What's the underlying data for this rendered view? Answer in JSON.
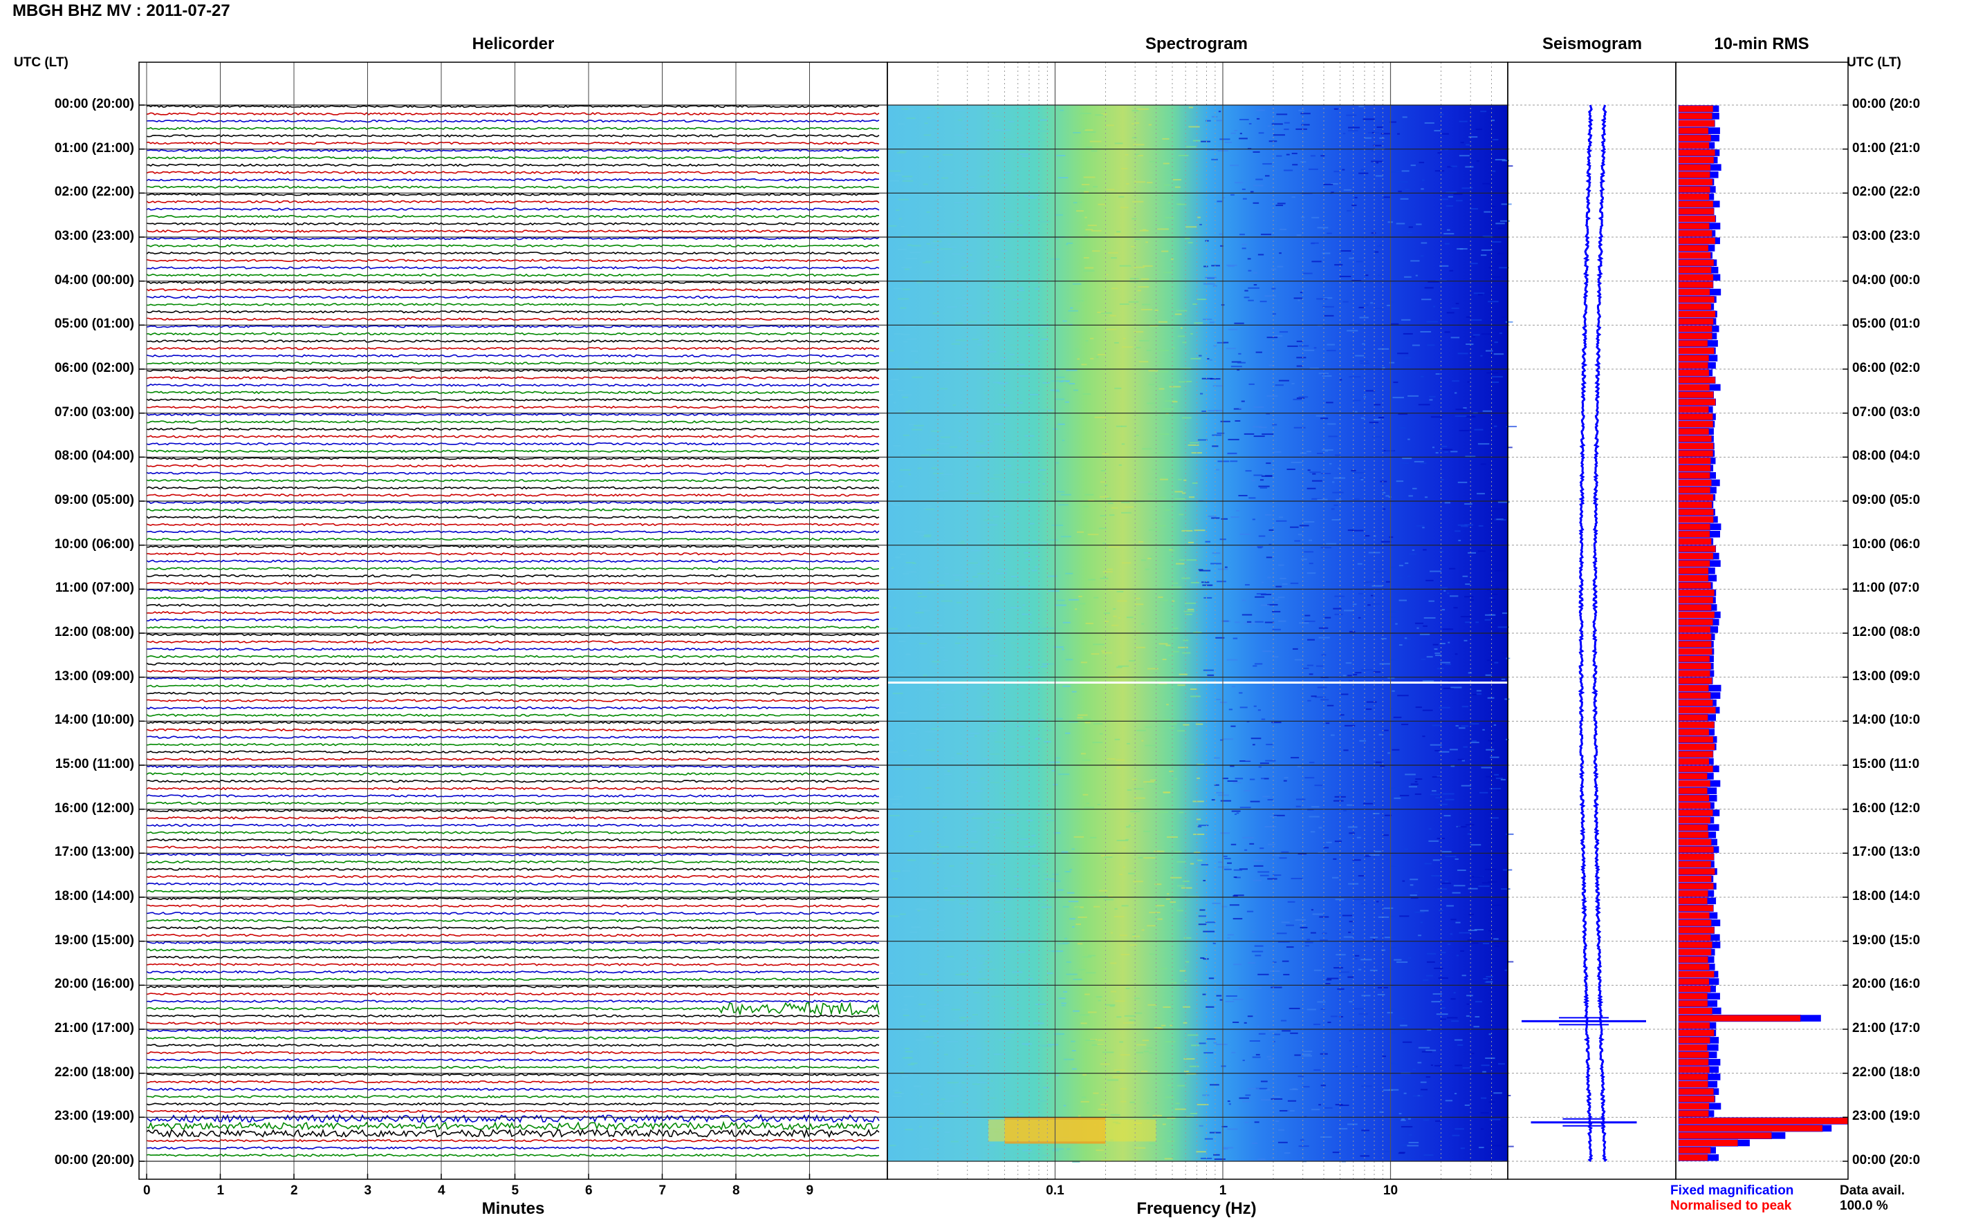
{
  "header": {
    "title": "MBGH BHZ MV : 2011-07-27",
    "tz_label_left": "UTC (LT)",
    "tz_label_right": "UTC (LT)"
  },
  "panels": {
    "helicorder": "Helicorder",
    "spectrogram": "Spectrogram",
    "seismogram": "Seismogram",
    "rms": "10-min RMS"
  },
  "time_labels": [
    "00:00 (20:00)",
    "01:00 (21:00)",
    "02:00 (22:00)",
    "03:00 (23:00)",
    "04:00 (00:00)",
    "05:00 (01:00)",
    "06:00 (02:00)",
    "07:00 (03:00)",
    "08:00 (04:00)",
    "09:00 (05:00)",
    "10:00 (06:00)",
    "11:00 (07:00)",
    "12:00 (08:00)",
    "13:00 (09:00)",
    "14:00 (10:00)",
    "15:00 (11:00)",
    "16:00 (12:00)",
    "17:00 (13:00)",
    "18:00 (14:00)",
    "19:00 (15:00)",
    "20:00 (16:00)",
    "21:00 (17:00)",
    "22:00 (18:00)",
    "23:00 (19:00)",
    "00:00 (20:00)"
  ],
  "time_labels_right": [
    "00:00 (20:0",
    "01:00 (21:0",
    "02:00 (22:0",
    "03:00 (23:0",
    "04:00 (00:0",
    "05:00 (01:0",
    "06:00 (02:0",
    "07:00 (03:0",
    "08:00 (04:0",
    "09:00 (05:0",
    "10:00 (06:0",
    "11:00 (07:0",
    "12:00 (08:0",
    "13:00 (09:0",
    "14:00 (10:0",
    "15:00 (11:0",
    "16:00 (12:0",
    "17:00 (13:0",
    "18:00 (14:0",
    "19:00 (15:0",
    "20:00 (16:0",
    "21:00 (17:0",
    "22:00 (18:0",
    "23:00 (19:0",
    "00:00 (20:0"
  ],
  "legend": {
    "fixed": "Fixed magnification",
    "normalised": "Normalised to peak",
    "fixed_color": "#0000ff",
    "normalised_color": "#ff0000"
  },
  "data_avail": {
    "label": "Data avail.",
    "value": "100.0 %"
  },
  "chart_data": [
    {
      "type": "line",
      "title": "Helicorder",
      "xlabel": "Minutes",
      "x_ticks": [
        0,
        1,
        2,
        3,
        4,
        5,
        6,
        7,
        8,
        9
      ],
      "xlim": [
        0,
        10
      ],
      "rows_per_hour": 6,
      "trace_colors": [
        "#000000",
        "#cc0000",
        "#0000cc",
        "#008800"
      ],
      "events": [
        {
          "hour_row": 123,
          "start_min": 7.8,
          "end_min": 10.0,
          "kind": "sustained large amplitude"
        },
        {
          "hour_row": 138,
          "start_min": 0.0,
          "end_min": 10.0,
          "kind": "large amplitude"
        },
        {
          "hour_row": 139,
          "start_min": 0.0,
          "end_min": 10.0,
          "kind": "large amplitude"
        },
        {
          "hour_row": 140,
          "start_min": 0.0,
          "end_min": 10.0,
          "kind": "large amplitude"
        }
      ]
    },
    {
      "type": "heatmap",
      "title": "Spectrogram",
      "xlabel": "Frequency (Hz)",
      "x_ticks": [
        "0.1",
        "1",
        "10"
      ],
      "x_scale": "log",
      "xlim": [
        0.01,
        50
      ],
      "colors": [
        "#60c8e8",
        "#5fd2c8",
        "#7fe08a",
        "#c8e060",
        "#3a80f0",
        "#1040e0",
        "#0010c0"
      ]
    },
    {
      "type": "line",
      "title": "Seismogram",
      "spikes": [
        {
          "time": "20:49",
          "relative": 1.0
        },
        {
          "time": "23:07",
          "relative": 0.85
        }
      ]
    },
    {
      "type": "bar",
      "title": "10-min RMS",
      "orientation": "horizontal",
      "bins_per_hour": 6,
      "baseline_fixed": 0.22,
      "baseline_normalised": 0.2,
      "peaks": [
        {
          "time": "20:40",
          "normalised": 0.72,
          "fixed": 0.8
        },
        {
          "time": "23:00",
          "normalised": 1.0,
          "fixed": 0.75
        },
        {
          "time": "23:10",
          "normalised": 0.85,
          "fixed": 0.86
        },
        {
          "time": "23:20",
          "normalised": 0.55,
          "fixed": 0.6
        },
        {
          "time": "23:30",
          "normalised": 0.35,
          "fixed": 0.4
        }
      ]
    }
  ]
}
